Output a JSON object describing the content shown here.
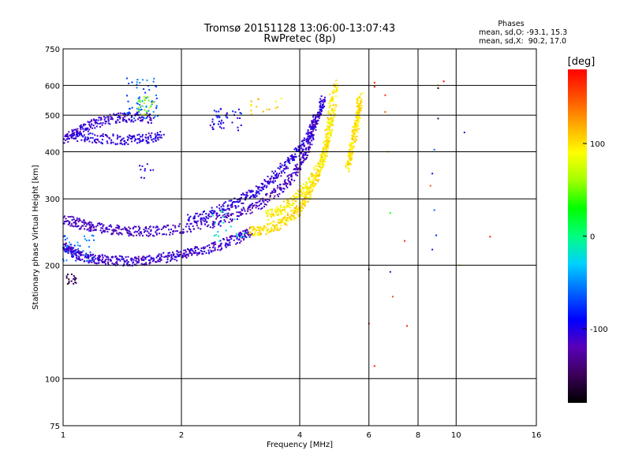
{
  "chart_data": {
    "type": "scatter",
    "title": "Tromsø 20151128 13:06:00-13:07:43",
    "subtitle": "RwPretec (8p)",
    "xlabel": "Frequency [MHz]",
    "ylabel": "Stationary phase Virtual Height [km]",
    "x_scale": "log",
    "y_scale": "log",
    "xlim": [
      1,
      16
    ],
    "ylim": [
      75,
      750
    ],
    "x_ticks": [
      1,
      2,
      4,
      6,
      8,
      10,
      16
    ],
    "y_ticks": [
      75,
      100,
      200,
      300,
      400,
      500,
      600,
      750
    ],
    "grid": true,
    "annotation": {
      "heading": "Phases",
      "line1": "mean, sd,O: -93.1, 15.3",
      "line2": "mean, sd,X:  90.2, 17.0"
    },
    "colorbar": {
      "label": "[deg]",
      "range": [
        -180,
        180
      ],
      "ticks": [
        100,
        0,
        -100
      ],
      "colors": [
        "#000000",
        "#3a0058",
        "#5a00b8",
        "#0000ff",
        "#0066ff",
        "#00d0ff",
        "#00ff80",
        "#00ff00",
        "#a0ff00",
        "#ffff00",
        "#ffaa00",
        "#ff5000",
        "#ff0000"
      ]
    },
    "traces": [
      {
        "x": [
          1.0,
          1.05,
          1.1,
          1.2,
          1.3,
          1.45,
          1.6,
          1.8,
          2.0,
          2.2,
          2.5,
          2.8,
          3.0
        ],
        "y": [
          225,
          218,
          212,
          208,
          206,
          205,
          206,
          209,
          213,
          218,
          226,
          236,
          245
        ],
        "phase": -110
      },
      {
        "x": [
          1.0,
          1.1,
          1.2,
          1.35,
          1.5,
          1.7,
          2.0,
          2.4,
          2.8,
          3.2,
          3.6,
          3.9,
          4.1,
          4.3,
          4.4
        ],
        "y": [
          265,
          258,
          252,
          248,
          246,
          246,
          250,
          258,
          272,
          292,
          320,
          352,
          390,
          440,
          500
        ],
        "phase": -115
      },
      {
        "x": [
          2.1,
          2.4,
          2.7,
          3.0,
          3.3,
          3.6,
          3.9,
          4.2,
          4.5,
          4.6
        ],
        "y": [
          265,
          275,
          290,
          308,
          330,
          360,
          395,
          440,
          500,
          560
        ],
        "phase": -105
      },
      {
        "x": [
          3.0,
          3.2,
          3.5,
          3.8,
          4.0,
          4.2,
          4.4,
          4.6,
          4.75,
          4.85
        ],
        "y": [
          245,
          248,
          255,
          268,
          282,
          305,
          340,
          390,
          460,
          560
        ],
        "phase": 100
      },
      {
        "x": [
          3.3,
          3.6,
          3.9,
          4.2,
          4.5,
          4.7,
          4.85,
          4.95
        ],
        "y": [
          270,
          282,
          300,
          325,
          365,
          420,
          500,
          620
        ],
        "phase": 95
      },
      {
        "x": [
          5.3,
          5.4,
          5.5,
          5.6,
          5.65,
          5.7
        ],
        "y": [
          360,
          400,
          440,
          480,
          520,
          560
        ],
        "phase": 100
      },
      {
        "x": [
          1.0,
          1.1,
          1.2,
          1.35,
          1.5,
          1.7
        ],
        "y": [
          430,
          455,
          475,
          490,
          495,
          490
        ],
        "phase": -110
      },
      {
        "x": [
          1.05,
          1.2,
          1.4,
          1.6,
          1.8
        ],
        "y": [
          440,
          435,
          430,
          432,
          440
        ],
        "phase": -105
      }
    ],
    "clusters": [
      {
        "x": [
          1.0,
          1.2
        ],
        "y": [
          205,
          240
        ],
        "phase": -60,
        "n": 40
      },
      {
        "x": [
          1.45,
          1.75
        ],
        "y": [
          490,
          630
        ],
        "phase": -60,
        "n": 60
      },
      {
        "x": [
          1.55,
          1.7
        ],
        "y": [
          500,
          560
        ],
        "phase": 60,
        "n": 25
      },
      {
        "x": [
          2.35,
          2.85
        ],
        "y": [
          450,
          520
        ],
        "phase": -95,
        "n": 45
      },
      {
        "x": [
          1.55,
          1.7
        ],
        "y": [
          340,
          380
        ],
        "phase": -110,
        "n": 10
      },
      {
        "x": [
          3.0,
          3.6
        ],
        "y": [
          500,
          560
        ],
        "phase": 100,
        "n": 15
      },
      {
        "x": [
          1.02,
          1.08
        ],
        "y": [
          178,
          190
        ],
        "phase": -150,
        "n": 18
      },
      {
        "x": [
          2.4,
          2.9
        ],
        "y": [
          230,
          280
        ],
        "phase": -20,
        "n": 20
      }
    ],
    "sparse": [
      {
        "x": 6.2,
        "y": 610,
        "phase": 170
      },
      {
        "x": 6.2,
        "y": 595,
        "phase": 170
      },
      {
        "x": 6.6,
        "y": 565,
        "phase": 160
      },
      {
        "x": 6.6,
        "y": 510,
        "phase": 150
      },
      {
        "x": 6.7,
        "y": 400,
        "phase": 60
      },
      {
        "x": 6.8,
        "y": 275,
        "phase": 30
      },
      {
        "x": 6.8,
        "y": 192,
        "phase": -110
      },
      {
        "x": 6.9,
        "y": 165,
        "phase": 150
      },
      {
        "x": 7.4,
        "y": 232,
        "phase": 170
      },
      {
        "x": 7.5,
        "y": 138,
        "phase": 170
      },
      {
        "x": 6.2,
        "y": 108,
        "phase": 170
      },
      {
        "x": 6.0,
        "y": 140,
        "phase": 170
      },
      {
        "x": 6.0,
        "y": 195,
        "phase": -150
      },
      {
        "x": 8.6,
        "y": 325,
        "phase": 150
      },
      {
        "x": 8.7,
        "y": 350,
        "phase": -100
      },
      {
        "x": 8.8,
        "y": 280,
        "phase": -60
      },
      {
        "x": 8.9,
        "y": 240,
        "phase": -80
      },
      {
        "x": 9.0,
        "y": 600,
        "phase": 130
      },
      {
        "x": 9.3,
        "y": 615,
        "phase": 180
      },
      {
        "x": 9.0,
        "y": 590,
        "phase": -180
      },
      {
        "x": 10.5,
        "y": 450,
        "phase": -110
      },
      {
        "x": 12.2,
        "y": 238,
        "phase": 170
      },
      {
        "x": 10.2,
        "y": 200,
        "phase": 80
      },
      {
        "x": 8.7,
        "y": 220,
        "phase": -110
      },
      {
        "x": 9.0,
        "y": 490,
        "phase": -150
      },
      {
        "x": 8.8,
        "y": 405,
        "phase": -60
      }
    ]
  }
}
